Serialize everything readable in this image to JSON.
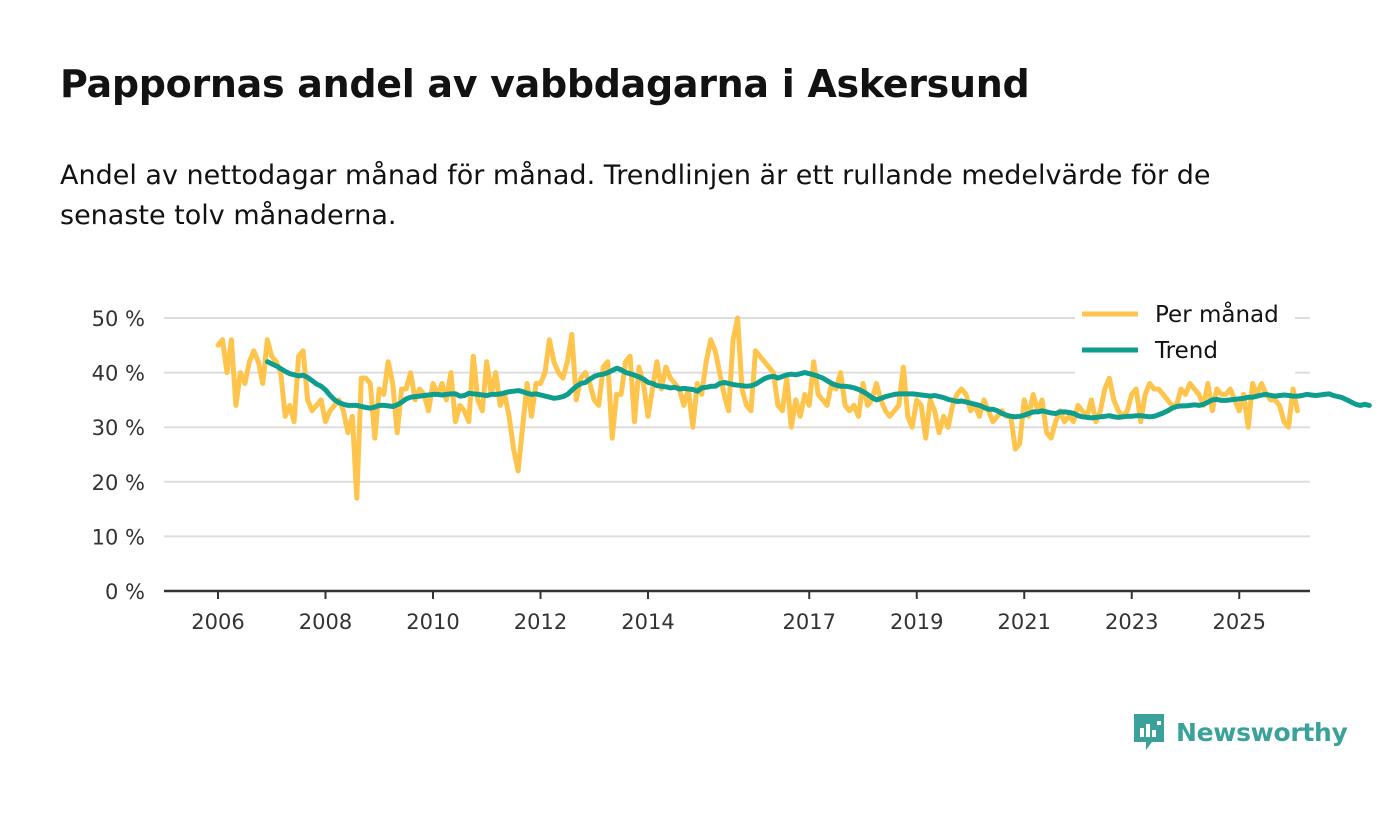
{
  "header": {
    "title": "Pappornas andel av vabbdagarna i Askersund",
    "subtitle": "Andel av nettodagar månad för månad. Trendlinjen är ett rullande medelvärde för de senaste tolv månaderna."
  },
  "brand": {
    "name": "Newsworthy",
    "color": "#3aa29a"
  },
  "colors": {
    "monthly": "#ffc44c",
    "trend": "#0f9e8e",
    "grid": "#dddddd",
    "axis": "#333333"
  },
  "chart_data": {
    "type": "line",
    "title": "Pappornas andel av vabbdagarna i Askersund",
    "xlabel": "",
    "ylabel": "",
    "ylim": [
      0,
      50
    ],
    "xlim": [
      2005.5,
      2026.3
    ],
    "grid": true,
    "legend_position": "top-right",
    "y_ticks": [
      {
        "value": 0,
        "label": "0 %"
      },
      {
        "value": 10,
        "label": "10 %"
      },
      {
        "value": 20,
        "label": "20 %"
      },
      {
        "value": 30,
        "label": "30 %"
      },
      {
        "value": 40,
        "label": "40 %"
      },
      {
        "value": 50,
        "label": "50 %"
      }
    ],
    "x_ticks": [
      {
        "value": 2006,
        "label": "2006"
      },
      {
        "value": 2008,
        "label": "2008"
      },
      {
        "value": 2010,
        "label": "2010"
      },
      {
        "value": 2012,
        "label": "2012"
      },
      {
        "value": 2014,
        "label": "2014"
      },
      {
        "value": 2017,
        "label": "2017"
      },
      {
        "value": 2019,
        "label": "2019"
      },
      {
        "value": 2021,
        "label": "2021"
      },
      {
        "value": 2023,
        "label": "2023"
      },
      {
        "value": 2025,
        "label": "2025"
      }
    ],
    "series": [
      {
        "name": "Per månad",
        "color": "#ffc44c",
        "start": 2006.0,
        "step": 0.08333,
        "values": [
          45,
          46,
          40,
          46,
          34,
          40,
          38,
          42,
          44,
          42,
          38,
          46,
          43,
          42,
          40,
          32,
          34,
          31,
          43,
          44,
          35,
          33,
          34,
          35,
          31,
          33,
          34,
          35,
          33,
          29,
          32,
          17,
          39,
          39,
          38,
          28,
          37,
          36,
          42,
          38,
          29,
          37,
          37,
          40,
          35,
          37,
          36,
          33,
          38,
          36,
          38,
          35,
          40,
          31,
          34,
          33,
          31,
          43,
          35,
          33,
          42,
          36,
          40,
          34,
          36,
          32,
          26,
          22,
          30,
          38,
          32,
          38,
          38,
          40,
          46,
          42,
          40,
          39,
          42,
          47,
          35,
          39,
          40,
          38,
          35,
          34,
          41,
          42,
          28,
          36,
          36,
          42,
          43,
          31,
          41,
          38,
          32,
          37,
          42,
          37,
          41,
          39,
          38,
          37,
          34,
          37,
          30,
          38,
          36,
          42,
          46,
          44,
          40,
          36,
          33,
          46,
          50,
          37,
          34,
          33,
          44,
          43,
          42,
          41,
          40,
          34,
          33,
          39,
          30,
          35,
          32,
          36,
          34,
          42,
          36,
          35,
          34,
          38,
          37,
          40,
          34,
          33,
          34,
          32,
          38,
          34,
          35,
          38,
          35,
          33,
          32,
          33,
          34,
          41,
          32,
          30,
          35,
          34,
          28,
          35,
          33,
          29,
          32,
          30,
          34,
          36,
          37,
          36,
          33,
          34,
          32,
          35,
          33,
          31,
          32,
          33,
          32,
          32,
          26,
          27,
          35,
          32,
          36,
          33,
          35,
          29,
          28,
          31,
          33,
          31,
          32,
          31,
          34,
          33,
          32,
          35,
          31,
          33,
          37,
          39,
          35,
          33,
          32,
          33,
          36,
          37,
          31,
          36,
          38,
          37,
          37,
          36,
          35,
          34,
          34,
          37,
          36,
          38,
          37,
          36,
          34,
          38,
          33,
          37,
          36,
          36,
          37,
          35,
          33,
          36,
          30,
          38,
          36,
          38,
          36,
          35,
          35,
          34,
          31,
          30,
          37,
          33
        ],
        "note": "values estimated from the plotted line"
      },
      {
        "name": "Trend",
        "color": "#0f9e8e",
        "start": 2006.92,
        "step": 0.08333,
        "values": [
          42,
          41.6,
          41.2,
          40.7,
          40.2,
          39.8,
          39.6,
          39.4,
          39.5,
          39.1,
          38.5,
          37.9,
          37.5,
          36.8,
          35.8,
          35.0,
          34.5,
          34.2,
          34.0,
          34.0,
          34.0,
          33.8,
          33.6,
          33.5,
          33.7,
          34.0,
          34.0,
          33.9,
          33.8,
          34.1,
          34.6,
          35.2,
          35.5,
          35.6,
          35.7,
          35.8,
          35.9,
          36.0,
          36.0,
          35.9,
          36.0,
          36.1,
          36.1,
          35.7,
          35.8,
          36.2,
          36.1,
          36.0,
          35.9,
          35.8,
          36.0,
          36.0,
          36.1,
          36.3,
          36.5,
          36.6,
          36.7,
          36.5,
          36.2,
          36.0,
          36.1,
          35.9,
          35.7,
          35.5,
          35.3,
          35.4,
          35.6,
          36.0,
          36.8,
          37.5,
          38.0,
          38.2,
          38.8,
          39.3,
          39.6,
          39.7,
          40.0,
          40.4,
          40.8,
          40.5,
          40.0,
          39.8,
          39.5,
          39.2,
          38.8,
          38.2,
          38.0,
          37.6,
          37.5,
          37.4,
          37.2,
          37.3,
          37.0,
          37.1,
          37.0,
          36.9,
          36.6,
          37.2,
          37.3,
          37.5,
          37.5,
          38.0,
          38.2,
          38.0,
          37.8,
          37.7,
          37.6,
          37.5,
          37.6,
          37.9,
          38.4,
          38.9,
          39.2,
          39.3,
          39.0,
          39.3,
          39.6,
          39.7,
          39.6,
          39.8,
          40.0,
          39.8,
          39.6,
          39.3,
          39.0,
          38.5,
          38.0,
          37.7,
          37.5,
          37.5,
          37.4,
          37.2,
          36.9,
          36.5,
          36.0,
          35.4,
          35.0,
          35.3,
          35.6,
          35.8,
          36.0,
          36.1,
          36.1,
          36.1,
          36.1,
          36.0,
          35.9,
          35.8,
          35.7,
          35.8,
          35.6,
          35.4,
          35.1,
          34.9,
          34.7,
          34.8,
          34.6,
          34.4,
          34.2,
          34.0,
          33.6,
          33.3,
          33.3,
          33.0,
          32.5,
          32.2,
          32.0,
          31.9,
          32.0,
          32.2,
          32.5,
          32.8,
          32.8,
          33.0,
          32.8,
          32.6,
          32.5,
          32.8,
          32.8,
          32.7,
          32.5,
          32.1,
          31.9,
          31.8,
          31.7,
          31.8,
          31.9,
          32.0,
          32.1,
          31.9,
          31.8,
          31.9,
          32.0,
          32.0,
          32.1,
          32.1,
          32.0,
          31.9,
          32.0,
          32.3,
          32.6,
          33.0,
          33.5,
          33.8,
          33.9,
          33.9,
          34.0,
          34.1,
          34.0,
          34.2,
          34.6,
          35.0,
          35.1,
          34.9,
          34.9,
          35.0,
          35.1,
          35.2,
          35.3,
          35.5,
          35.5,
          35.7,
          35.9,
          36.0,
          35.8,
          35.7,
          35.8,
          35.9,
          35.8,
          35.7,
          35.7,
          35.8,
          36.0,
          35.9,
          35.8,
          35.9,
          36.0,
          36.1,
          35.8,
          35.6,
          35.4,
          35.0,
          34.6,
          34.2,
          34.0,
          34.2,
          34.0
        ]
      }
    ]
  }
}
